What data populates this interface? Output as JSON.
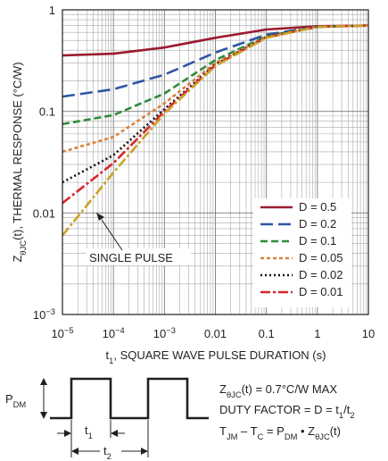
{
  "chart_data": {
    "type": "line",
    "xscale": "log",
    "yscale": "log",
    "xlim": [
      1e-05,
      10
    ],
    "ylim": [
      0.001,
      1
    ],
    "xlabel": "t1, SQUARE WAVE PULSE DURATION (s)",
    "ylabel": "ZθJC(t), THERMAL RESPONSE (°C/W)",
    "grid": true,
    "legend_position": "bottom-right",
    "x_tick_labels": [
      "10−5",
      "10−4",
      "10−3",
      "0.01",
      "0.1",
      "1",
      "10"
    ],
    "y_tick_labels": [
      "10−3",
      "0.01",
      "0.1",
      "1"
    ],
    "annotation": "SINGLE PULSE",
    "series": [
      {
        "name": "D = 0.5",
        "color": "#9b1b30",
        "dash": "solid",
        "x": [
          1e-05,
          0.0001,
          0.001,
          0.01,
          0.1,
          1,
          10
        ],
        "y": [
          0.355,
          0.37,
          0.425,
          0.53,
          0.64,
          0.69,
          0.7
        ]
      },
      {
        "name": "D = 0.2",
        "color": "#2f56a5",
        "dash": "long",
        "x": [
          1e-05,
          0.0001,
          0.001,
          0.01,
          0.1,
          1,
          10
        ],
        "y": [
          0.14,
          0.165,
          0.23,
          0.38,
          0.57,
          0.68,
          0.7
        ]
      },
      {
        "name": "D = 0.1",
        "color": "#2e8b3c",
        "dash": "medium",
        "x": [
          1e-05,
          0.0001,
          0.001,
          0.01,
          0.1,
          1,
          10
        ],
        "y": [
          0.075,
          0.092,
          0.15,
          0.32,
          0.55,
          0.68,
          0.7
        ]
      },
      {
        "name": "D = 0.05",
        "color": "#d9823b",
        "dash": "short",
        "x": [
          1e-05,
          0.0001,
          0.001,
          0.01,
          0.1,
          1,
          10
        ],
        "y": [
          0.04,
          0.056,
          0.12,
          0.3,
          0.54,
          0.68,
          0.7
        ]
      },
      {
        "name": "D = 0.02",
        "color": "#111111",
        "dash": "dot",
        "x": [
          1e-05,
          0.0001,
          0.001,
          0.01,
          0.1,
          1,
          10
        ],
        "y": [
          0.02,
          0.037,
          0.105,
          0.29,
          0.54,
          0.68,
          0.7
        ]
      },
      {
        "name": "D = 0.01",
        "color": "#d7262e",
        "dash": "dashdot",
        "x": [
          1e-05,
          0.0001,
          0.001,
          0.01,
          0.1,
          1,
          10
        ],
        "y": [
          0.0125,
          0.031,
          0.1,
          0.285,
          0.535,
          0.68,
          0.7
        ]
      },
      {
        "name": "",
        "label": "SINGLE PULSE",
        "color": "#c9a227",
        "dash": "dashdot",
        "x": [
          1e-05,
          0.0001,
          0.001,
          0.01,
          0.1,
          1,
          10
        ],
        "y": [
          0.006,
          0.025,
          0.095,
          0.28,
          0.53,
          0.68,
          0.7
        ]
      }
    ]
  },
  "diagram": {
    "pdm_label": "PDM",
    "t1_label": "t1",
    "t2_label": "t2",
    "eq1": "ZθJC(t) = 0.7°C/W MAX",
    "eq2": "DUTY FACTOR = D = t1/t2",
    "eq3": "TJM – TC = PDM • ZθJC(t)"
  }
}
